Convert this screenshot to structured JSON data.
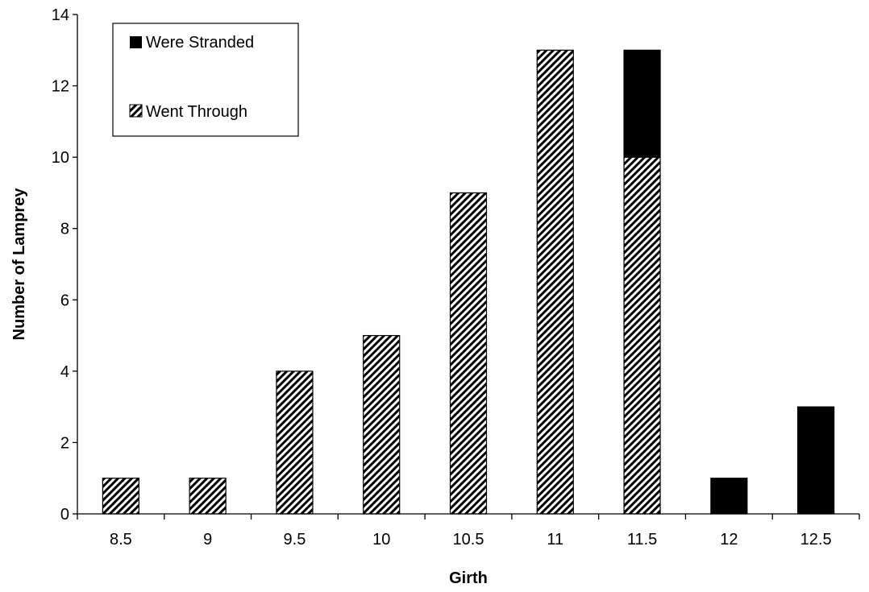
{
  "chart_data": {
    "type": "bar",
    "stacked": true,
    "title": "",
    "xlabel": "Girth",
    "ylabel": "Number of Lamprey",
    "categories": [
      "8.5",
      "9",
      "9.5",
      "10",
      "10.5",
      "11",
      "11.5",
      "12",
      "12.5"
    ],
    "ylim": [
      0,
      14
    ],
    "yticks": [
      0,
      2,
      4,
      6,
      8,
      10,
      12,
      14
    ],
    "grid": false,
    "legend_position": "top-left",
    "series": [
      {
        "name": "Went Through",
        "values": [
          1,
          1,
          4,
          5,
          9,
          13,
          10,
          0,
          0
        ],
        "style": "hatched",
        "color": "#000000"
      },
      {
        "name": "Were Stranded",
        "values": [
          0,
          0,
          0,
          0,
          0,
          0,
          3,
          1,
          3
        ],
        "style": "solid",
        "color": "#000000"
      }
    ],
    "legend_order": [
      "Were Stranded",
      "Went Through"
    ]
  }
}
